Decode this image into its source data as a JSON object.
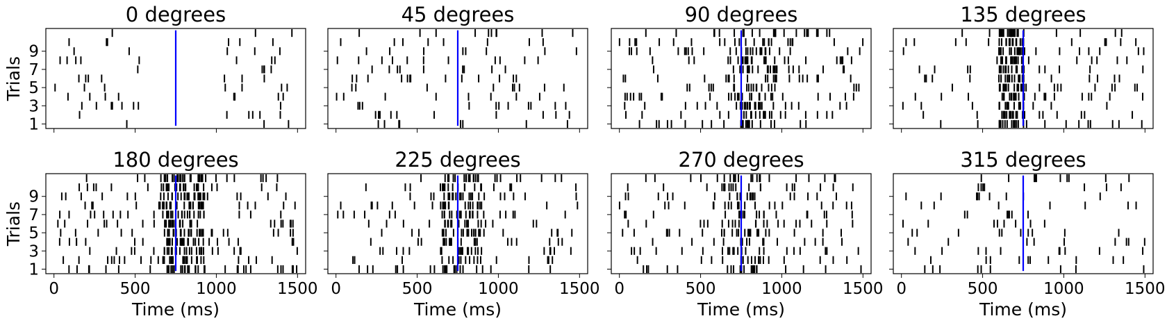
{
  "figure": {
    "ylabel": "Trials",
    "xlabel": "Time (ms)",
    "spike_color": "#000000",
    "marker_color": "#0000ff",
    "frame_color": "#000000",
    "background": "#ffffff"
  },
  "chart_data": [
    {
      "type": "raster",
      "title": "0 degrees",
      "xlim": [
        -50,
        1550
      ],
      "ylim": [
        0.5,
        11.5
      ],
      "x_ticks": [
        0,
        500,
        1000,
        1500
      ],
      "y_ticks": [
        1,
        3,
        5,
        7,
        9
      ],
      "trials": 11,
      "marker_x": 750,
      "grid": false,
      "rate_early": 9,
      "rate_late": 9,
      "burst": {
        "center": 750,
        "width": 0,
        "rate": 0
      },
      "gap": [
        540,
        1020
      ],
      "seed": 11
    },
    {
      "type": "raster",
      "title": "45 degrees",
      "xlim": [
        -50,
        1550
      ],
      "ylim": [
        0.5,
        11.5
      ],
      "x_ticks": [
        0,
        500,
        1000,
        1500
      ],
      "y_ticks": [
        1,
        3,
        5,
        7,
        9
      ],
      "trials": 11,
      "marker_x": 750,
      "grid": false,
      "rate_early": 11,
      "rate_late": 12,
      "burst": {
        "center": 750,
        "width": 0,
        "rate": 0
      },
      "gap": [
        700,
        760
      ],
      "seed": 23
    },
    {
      "type": "raster",
      "title": "90 degrees",
      "xlim": [
        -50,
        1550
      ],
      "ylim": [
        0.5,
        11.5
      ],
      "x_ticks": [
        0,
        500,
        1000,
        1500
      ],
      "y_ticks": [
        1,
        3,
        5,
        7,
        9
      ],
      "trials": 11,
      "marker_x": 750,
      "grid": false,
      "rate_early": 14,
      "rate_late": 22,
      "burst": {
        "center": 820,
        "width": 300,
        "rate": 10
      },
      "gap": null,
      "seed": 37
    },
    {
      "type": "raster",
      "title": "135 degrees",
      "xlim": [
        -50,
        1550
      ],
      "ylim": [
        0.5,
        11.5
      ],
      "x_ticks": [
        0,
        500,
        1000,
        1500
      ],
      "y_ticks": [
        1,
        3,
        5,
        7,
        9
      ],
      "trials": 11,
      "marker_x": 750,
      "grid": false,
      "rate_early": 10,
      "rate_late": 15,
      "burst": {
        "center": 680,
        "width": 160,
        "rate": 14
      },
      "gap": null,
      "seed": 41
    },
    {
      "type": "raster",
      "title": "180 degrees",
      "xlim": [
        -50,
        1550
      ],
      "ylim": [
        0.5,
        11.5
      ],
      "x_ticks": [
        0,
        500,
        1000,
        1500
      ],
      "y_ticks": [
        1,
        3,
        5,
        7,
        9
      ],
      "trials": 11,
      "marker_x": 750,
      "grid": false,
      "rate_early": 16,
      "rate_late": 18,
      "burst": {
        "center": 800,
        "width": 260,
        "rate": 16
      },
      "gap": null,
      "seed": 53
    },
    {
      "type": "raster",
      "title": "225 degrees",
      "xlim": [
        -50,
        1550
      ],
      "ylim": [
        0.5,
        11.5
      ],
      "x_ticks": [
        0,
        500,
        1000,
        1500
      ],
      "y_ticks": [
        1,
        3,
        5,
        7,
        9
      ],
      "trials": 11,
      "marker_x": 750,
      "grid": false,
      "rate_early": 12,
      "rate_late": 18,
      "burst": {
        "center": 780,
        "width": 260,
        "rate": 10
      },
      "gap": null,
      "seed": 67
    },
    {
      "type": "raster",
      "title": "270 degrees",
      "xlim": [
        -50,
        1550
      ],
      "ylim": [
        0.5,
        11.5
      ],
      "x_ticks": [
        0,
        500,
        1000,
        1500
      ],
      "y_ticks": [
        1,
        3,
        5,
        7,
        9
      ],
      "trials": 11,
      "marker_x": 750,
      "grid": false,
      "rate_early": 14,
      "rate_late": 15,
      "burst": {
        "center": 760,
        "width": 260,
        "rate": 8
      },
      "gap": null,
      "seed": 79
    },
    {
      "type": "raster",
      "title": "315 degrees",
      "xlim": [
        -50,
        1550
      ],
      "ylim": [
        0.5,
        11.5
      ],
      "x_ticks": [
        0,
        500,
        1000,
        1500
      ],
      "y_ticks": [
        1,
        3,
        5,
        7,
        9
      ],
      "trials": 11,
      "marker_x": 750,
      "grid": false,
      "rate_early": 9,
      "rate_late": 9,
      "burst": {
        "center": 750,
        "width": 0,
        "rate": 0
      },
      "gap": null,
      "seed": 97
    }
  ]
}
